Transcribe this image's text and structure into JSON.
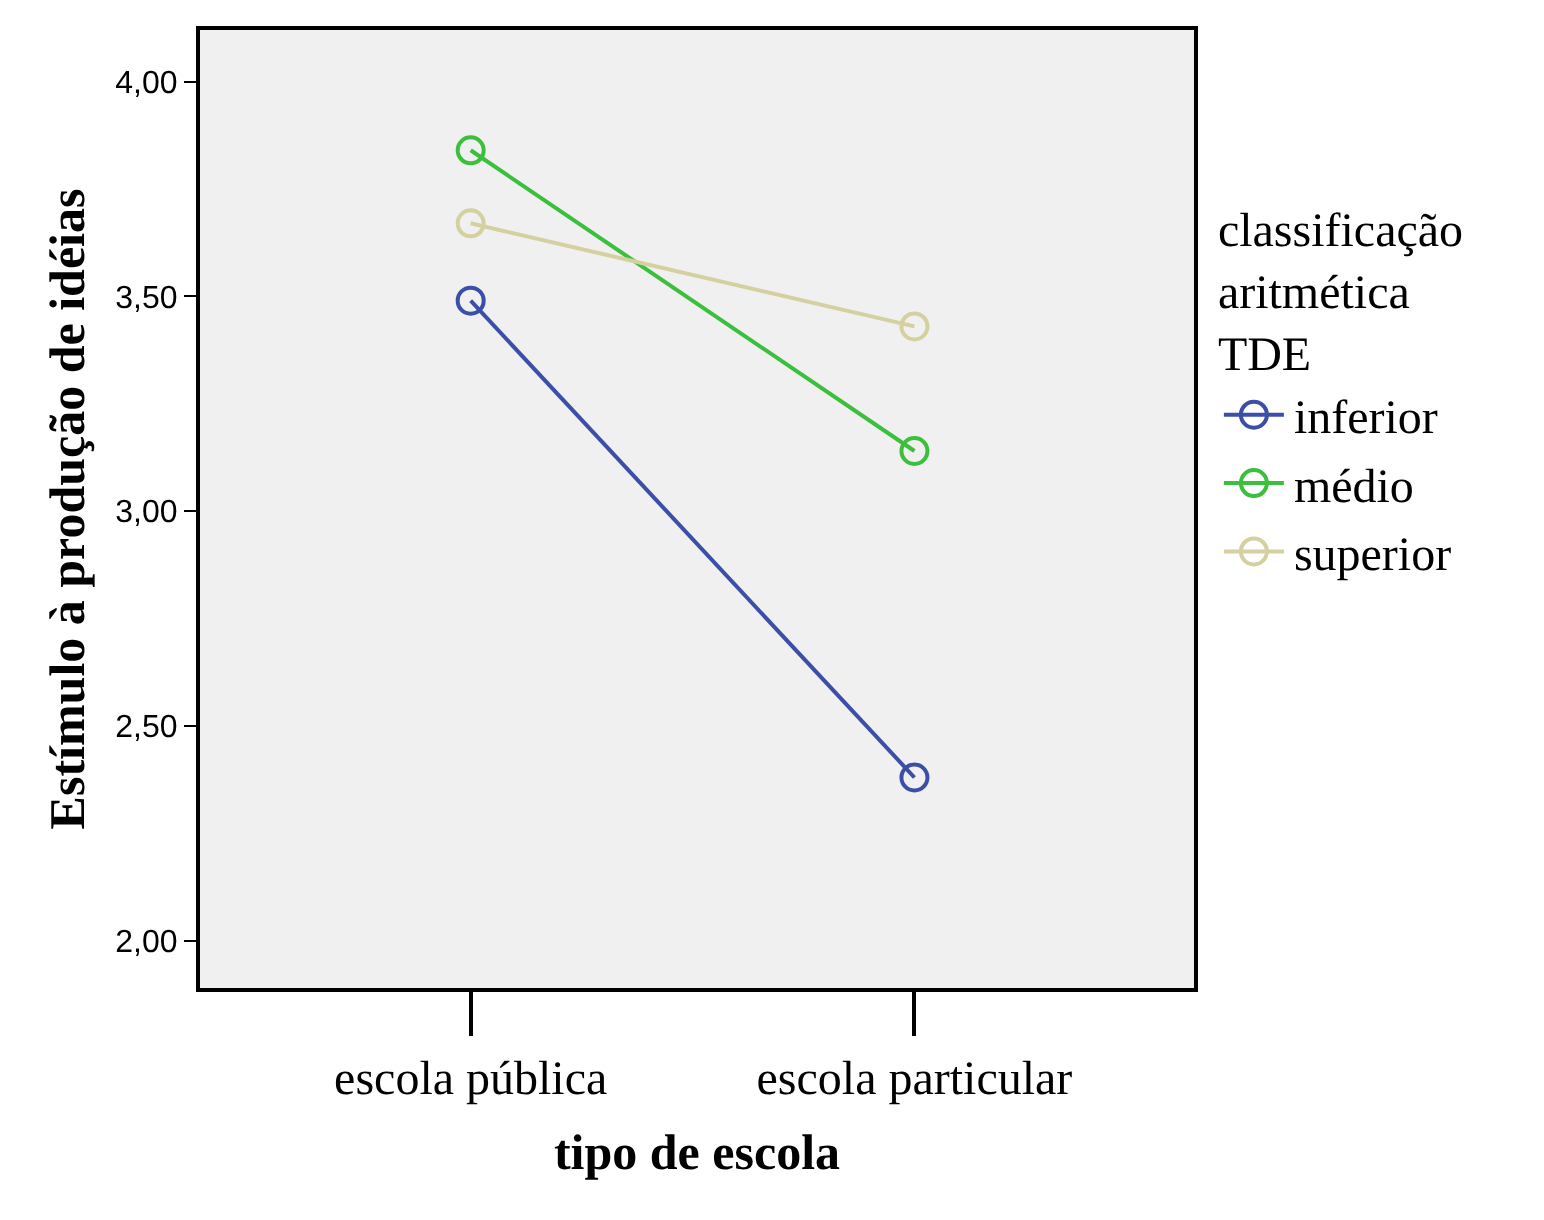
{
  "chart_data": {
    "type": "line",
    "xlabel": "tipo de escola",
    "ylabel": "Estímulo à produção de idéias",
    "legend_title": "classificação\naritmética\nTDE",
    "categories": [
      "escola pública",
      "escola particular"
    ],
    "series": [
      {
        "name": "inferior",
        "color": "#3c4fa8",
        "values": [
          3.49,
          2.38
        ]
      },
      {
        "name": "médio",
        "color": "#3cbf3c",
        "values": [
          3.84,
          3.14
        ]
      },
      {
        "name": "superior",
        "color": "#d4d0a0",
        "values": [
          3.67,
          3.43
        ]
      }
    ],
    "ylim": [
      1.89,
      4.12
    ],
    "yticks": [
      {
        "value": 2,
        "label": "2,00"
      },
      {
        "value": 2.5,
        "label": "2,50"
      },
      {
        "value": 3,
        "label": "3,00"
      },
      {
        "value": 3.5,
        "label": "3,50"
      },
      {
        "value": 4,
        "label": "4,00"
      }
    ],
    "grid": false,
    "legend": "right",
    "marker": "circle",
    "line_style": "solid"
  }
}
